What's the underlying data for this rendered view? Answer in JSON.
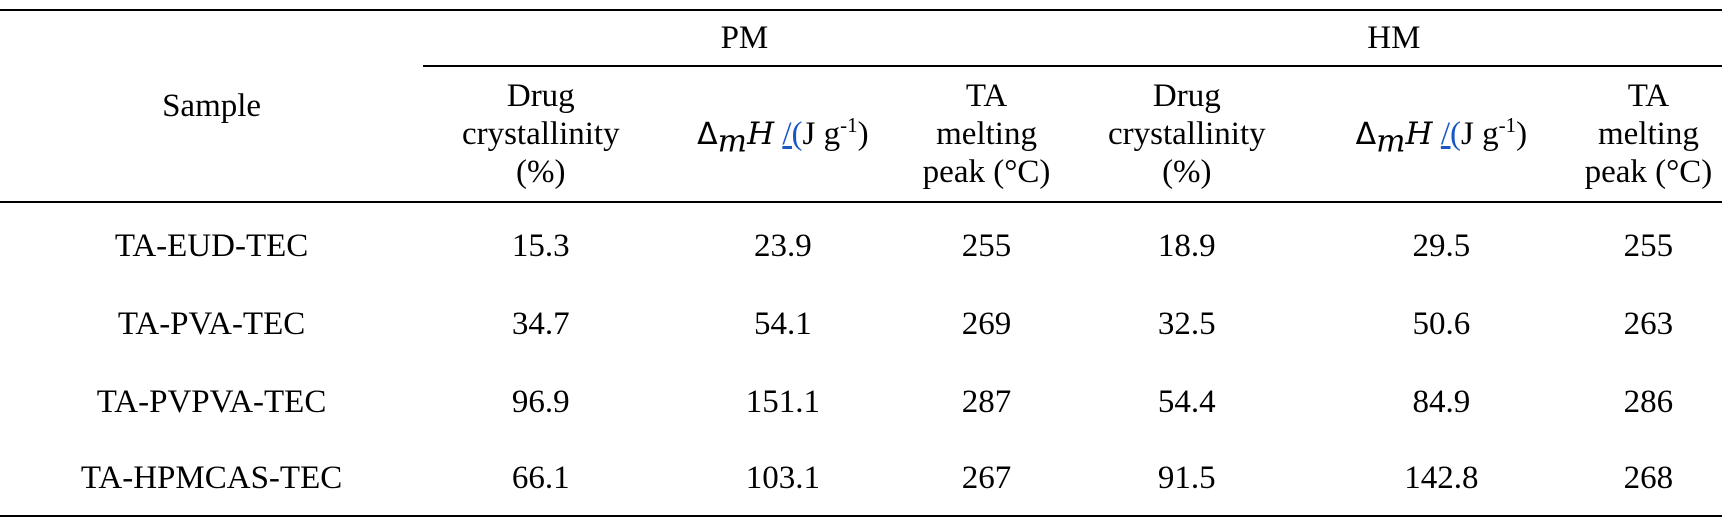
{
  "table": {
    "sample_header": "Sample",
    "groups": [
      {
        "label": "PM"
      },
      {
        "label": "HM"
      }
    ],
    "subheaders": {
      "crystallinity": [
        "Drug",
        "crystallinity",
        "(%)"
      ],
      "enthalpy": {
        "delta": "Δ",
        "sub": "m",
        "var": "H",
        "slash": "/",
        "paren_open": "(",
        "unit_text": "J g",
        "unit_sup": "-1",
        "paren_close": ")"
      },
      "melting": [
        "TA",
        "melting",
        "peak (°C)"
      ]
    },
    "rows": [
      {
        "sample": "TA-EUD-TEC",
        "pm": [
          "15.3",
          "23.9",
          "255"
        ],
        "hm": [
          "18.9",
          "29.5",
          "255"
        ]
      },
      {
        "sample": "TA-PVA-TEC",
        "pm": [
          "34.7",
          "54.1",
          "269"
        ],
        "hm": [
          "32.5",
          "50.6",
          "263"
        ]
      },
      {
        "sample": "TA-PVPVA-TEC",
        "pm": [
          "96.9",
          "151.1",
          "287"
        ],
        "hm": [
          "54.4",
          "84.9",
          "286"
        ]
      },
      {
        "sample": "TA-HPMCAS-TEC",
        "pm": [
          "66.1",
          "103.1",
          "267"
        ],
        "hm": [
          "91.5",
          "142.8",
          "268"
        ]
      }
    ]
  }
}
